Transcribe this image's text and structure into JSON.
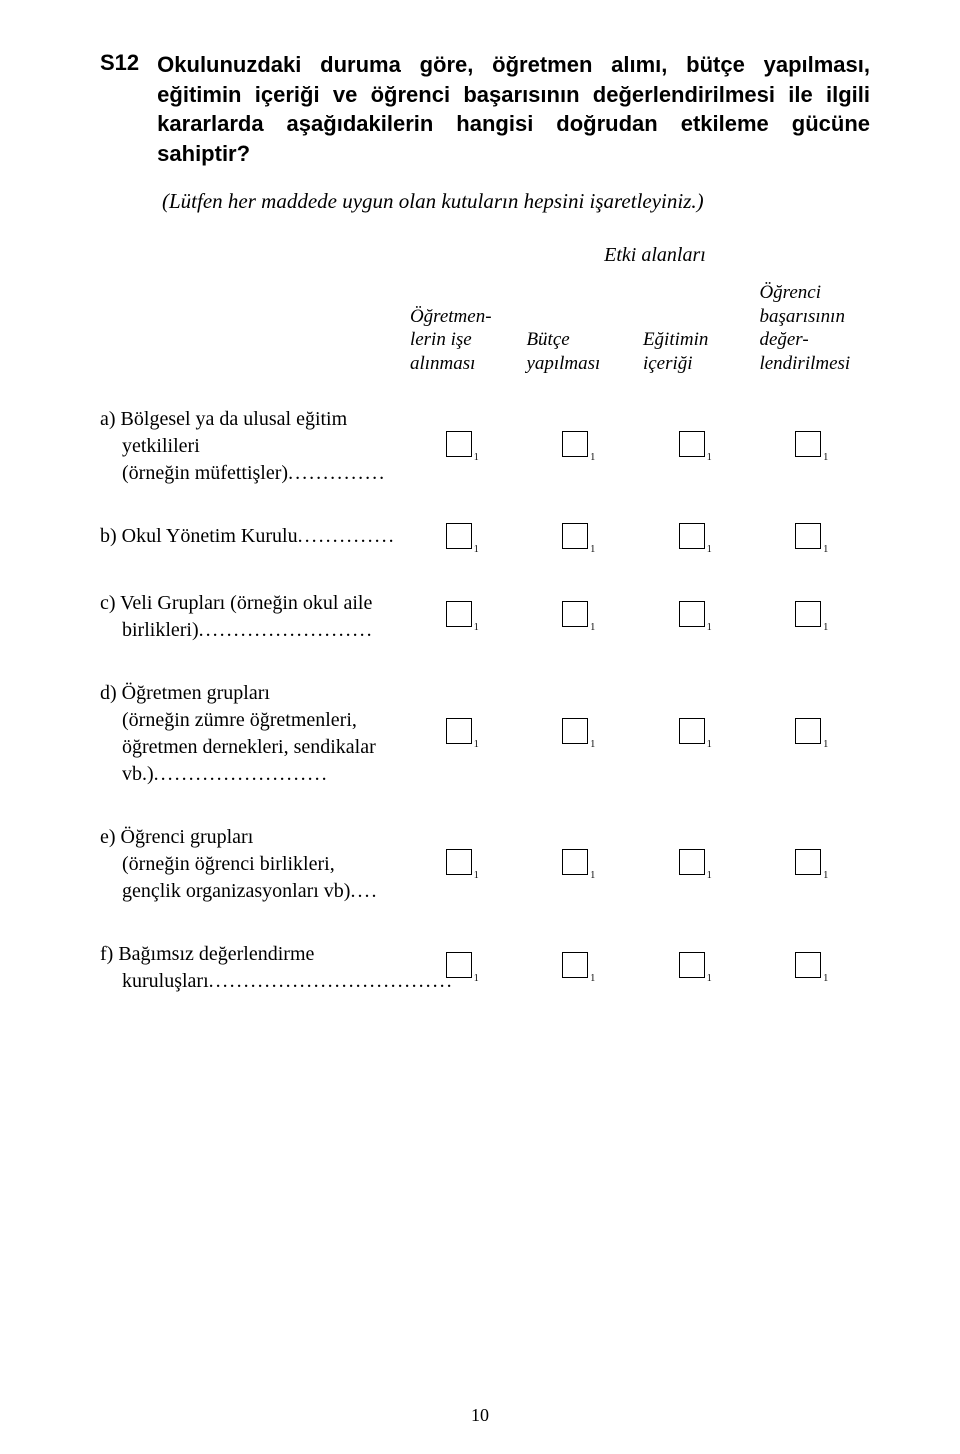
{
  "question": {
    "number": "S12",
    "text": "Okulunuzdaki duruma göre, öğretmen alımı, bütçe yapılması, eğitimin içeriği ve öğrenci başarısının değerlendirilmesi ile ilgili kararlarda aşağıdakilerin hangisi doğrudan etkileme gücüne sahiptir?",
    "instruction": "(Lütfen her maddede uygun olan kutuların hepsini işaretleyiniz.)"
  },
  "table": {
    "area_title": "Etki  alanları",
    "columns": [
      "Öğretmen-\nlerin işe\nalınması",
      "Bütçe\nyapılması",
      "Eğitimin\niçeriği",
      "Öğrenci\nbaşarısının\ndeğer-\nlendirilmesi"
    ],
    "rows": [
      {
        "marker": "a)",
        "label": "Bölgesel ya da ulusal eğitim yetkilileri",
        "suffix": "(örneğin  müfettişler)",
        "dots": ".............."
      },
      {
        "marker": "b)",
        "label": "Okul Yönetim Kurulu",
        "suffix": "",
        "dots": ".............."
      },
      {
        "marker": "c)",
        "label": "Veli Grupları (örneğin okul aile birlikleri)",
        "suffix": "",
        "dots": "........................."
      },
      {
        "marker": "d)",
        "label": "Öğretmen grupları",
        "suffix": "(örneğin  zümre öğretmenleri, öğretmen dernekleri, sendikalar vb.)",
        "dots": "........................."
      },
      {
        "marker": "e)",
        "label": "Öğrenci grupları",
        "suffix": "(örneğin  öğrenci birlikleri, gençlik organizasyonları vb)",
        "dots": "...."
      },
      {
        "marker": "f)",
        "label": "Bağımsız değerlendirme kuruluşları",
        "suffix": "",
        "dots": "..................................."
      }
    ],
    "checkbox_sub": "1"
  },
  "page_number": "10",
  "colors": {
    "background": "#ffffff",
    "text": "#000000",
    "border": "#000000"
  }
}
